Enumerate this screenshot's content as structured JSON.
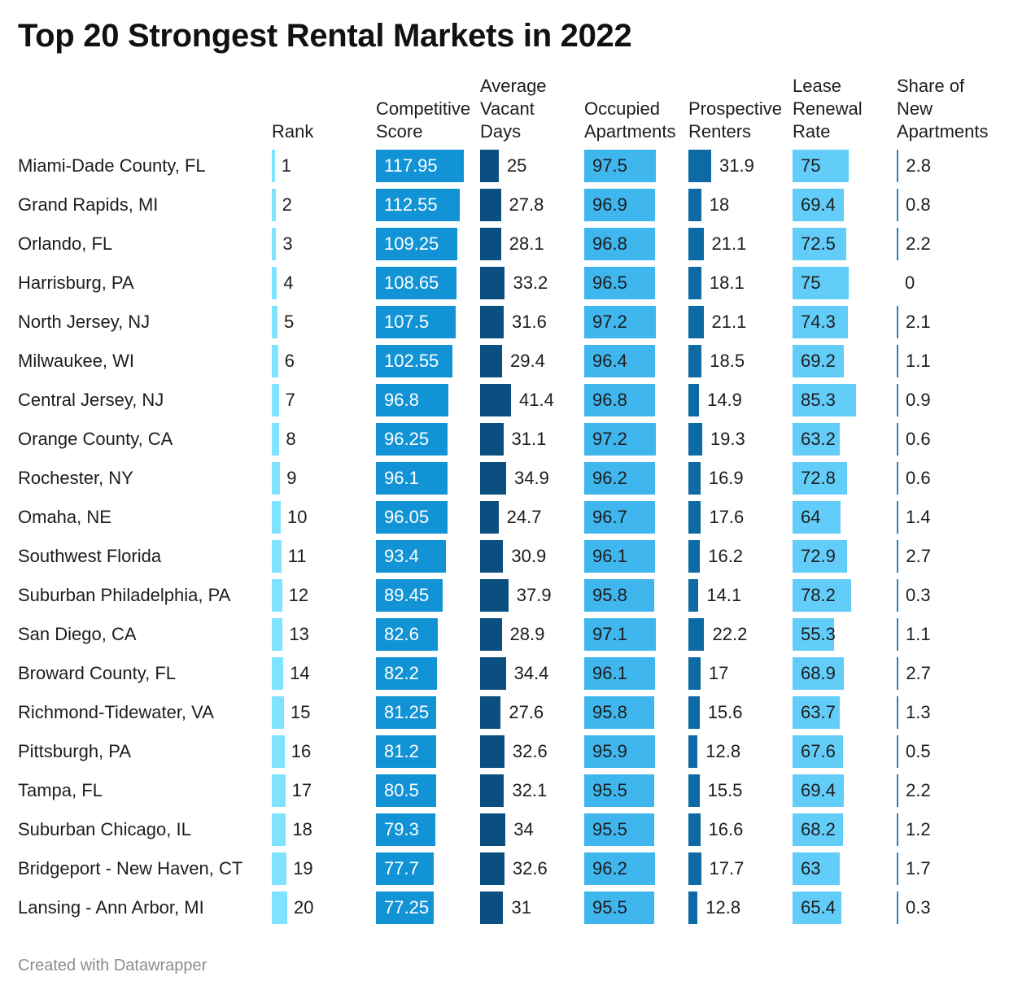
{
  "title": "Top 20 Strongest Rental Markets in 2022",
  "footer": "Created with Datawrapper",
  "colors": {
    "rank": "#7fe3ff",
    "score": "#1193d6",
    "vacant": "#0b4f80",
    "occupied": "#3fb6ee",
    "prospective": "#0e6aa4",
    "renewal": "#63cdfa",
    "share": "#2c7fb8"
  },
  "chart_data": {
    "type": "table",
    "title": "Top 20 Strongest Rental Markets in 2022",
    "columns": [
      {
        "key": "rank",
        "label": "Rank"
      },
      {
        "key": "score",
        "label": "Competitive Score"
      },
      {
        "key": "vacant",
        "label": "Average Vacant Days"
      },
      {
        "key": "occupied",
        "label": "Occupied Apartments"
      },
      {
        "key": "prospective",
        "label": "Prospective Renters"
      },
      {
        "key": "renewal",
        "label": "Lease Renewal Rate"
      },
      {
        "key": "share",
        "label": "Share of New Apartments"
      }
    ],
    "rows": [
      {
        "market": "Miami-Dade County, FL",
        "rank": "1",
        "score": "117.95",
        "vacant": "25",
        "occupied": "97.5",
        "prospective": "31.9",
        "renewal": "75",
        "share": "2.8"
      },
      {
        "market": "Grand Rapids, MI",
        "rank": "2",
        "score": "112.55",
        "vacant": "27.8",
        "occupied": "96.9",
        "prospective": "18",
        "renewal": "69.4",
        "share": "0.8"
      },
      {
        "market": "Orlando, FL",
        "rank": "3",
        "score": "109.25",
        "vacant": "28.1",
        "occupied": "96.8",
        "prospective": "21.1",
        "renewal": "72.5",
        "share": "2.2"
      },
      {
        "market": "Harrisburg, PA",
        "rank": "4",
        "score": "108.65",
        "vacant": "33.2",
        "occupied": "96.5",
        "prospective": "18.1",
        "renewal": "75",
        "share": "0"
      },
      {
        "market": "North Jersey, NJ",
        "rank": "5",
        "score": "107.5",
        "vacant": "31.6",
        "occupied": "97.2",
        "prospective": "21.1",
        "renewal": "74.3",
        "share": "2.1"
      },
      {
        "market": "Milwaukee, WI",
        "rank": "6",
        "score": "102.55",
        "vacant": "29.4",
        "occupied": "96.4",
        "prospective": "18.5",
        "renewal": "69.2",
        "share": "1.1"
      },
      {
        "market": "Central Jersey, NJ",
        "rank": "7",
        "score": "96.8",
        "vacant": "41.4",
        "occupied": "96.8",
        "prospective": "14.9",
        "renewal": "85.3",
        "share": "0.9"
      },
      {
        "market": "Orange County, CA",
        "rank": "8",
        "score": "96.25",
        "vacant": "31.1",
        "occupied": "97.2",
        "prospective": "19.3",
        "renewal": "63.2",
        "share": "0.6"
      },
      {
        "market": "Rochester, NY",
        "rank": "9",
        "score": "96.1",
        "vacant": "34.9",
        "occupied": "96.2",
        "prospective": "16.9",
        "renewal": "72.8",
        "share": "0.6"
      },
      {
        "market": "Omaha, NE",
        "rank": "10",
        "score": "96.05",
        "vacant": "24.7",
        "occupied": "96.7",
        "prospective": "17.6",
        "renewal": "64",
        "share": "1.4"
      },
      {
        "market": "Southwest Florida",
        "rank": "11",
        "score": "93.4",
        "vacant": "30.9",
        "occupied": "96.1",
        "prospective": "16.2",
        "renewal": "72.9",
        "share": "2.7"
      },
      {
        "market": "Suburban Philadelphia, PA",
        "rank": "12",
        "score": "89.45",
        "vacant": "37.9",
        "occupied": "95.8",
        "prospective": "14.1",
        "renewal": "78.2",
        "share": "0.3"
      },
      {
        "market": "San Diego, CA",
        "rank": "13",
        "score": "82.6",
        "vacant": "28.9",
        "occupied": "97.1",
        "prospective": "22.2",
        "renewal": "55.3",
        "share": "1.1"
      },
      {
        "market": "Broward County, FL",
        "rank": "14",
        "score": "82.2",
        "vacant": "34.4",
        "occupied": "96.1",
        "prospective": "17",
        "renewal": "68.9",
        "share": "2.7"
      },
      {
        "market": "Richmond-Tidewater, VA",
        "rank": "15",
        "score": "81.25",
        "vacant": "27.6",
        "occupied": "95.8",
        "prospective": "15.6",
        "renewal": "63.7",
        "share": "1.3"
      },
      {
        "market": "Pittsburgh, PA",
        "rank": "16",
        "score": "81.2",
        "vacant": "32.6",
        "occupied": "95.9",
        "prospective": "12.8",
        "renewal": "67.6",
        "share": "0.5"
      },
      {
        "market": "Tampa, FL",
        "rank": "17",
        "score": "80.5",
        "vacant": "32.1",
        "occupied": "95.5",
        "prospective": "15.5",
        "renewal": "69.4",
        "share": "2.2"
      },
      {
        "market": "Suburban Chicago, IL",
        "rank": "18",
        "score": "79.3",
        "vacant": "34",
        "occupied": "95.5",
        "prospective": "16.6",
        "renewal": "68.2",
        "share": "1.2"
      },
      {
        "market": "Bridgeport - New Haven, CT",
        "rank": "19",
        "score": "77.7",
        "vacant": "32.6",
        "occupied": "96.2",
        "prospective": "17.7",
        "renewal": "63",
        "share": "1.7"
      },
      {
        "market": "Lansing - Ann Arbor, MI",
        "rank": "20",
        "score": "77.25",
        "vacant": "31",
        "occupied": "95.5",
        "prospective": "12.8",
        "renewal": "65.4",
        "share": "0.3"
      }
    ]
  }
}
